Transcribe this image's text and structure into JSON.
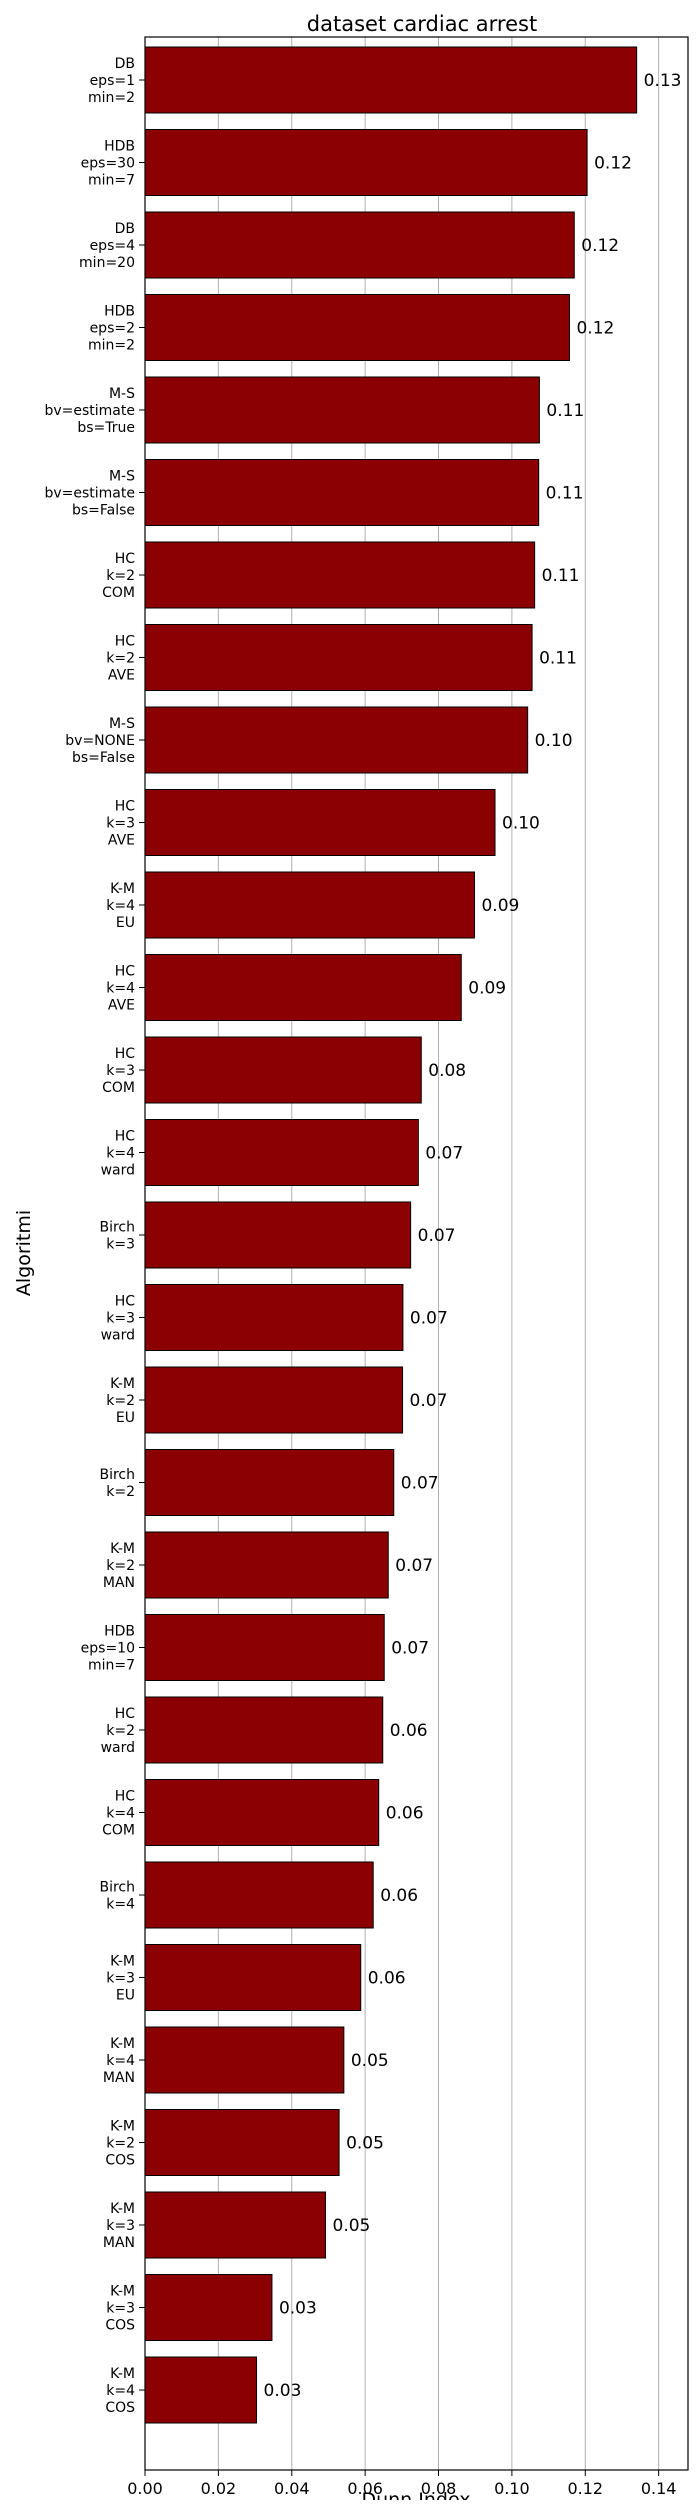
{
  "chart_data": {
    "type": "bar",
    "orientation": "horizontal",
    "title": "dataset cardiac arrest",
    "xlabel": "Dunn Index",
    "ylabel": "Algoritmi",
    "xlim": [
      0,
      0.148
    ],
    "xticks": [
      "0.00",
      "0.02",
      "0.04",
      "0.06",
      "0.08",
      "0.10",
      "0.12",
      "0.14"
    ],
    "xtick_values": [
      0,
      0.02,
      0.04,
      0.06,
      0.08,
      0.1,
      0.12,
      0.14
    ],
    "grid": "vertical",
    "bar_color": "#8B0000",
    "edge_color": "#000000",
    "grid_color": "#b0b0b0",
    "categories": [
      [
        "DB",
        "eps=1",
        "min=2"
      ],
      [
        "HDB",
        "eps=30",
        "min=7"
      ],
      [
        "DB",
        "eps=4",
        "min=20"
      ],
      [
        "HDB",
        "eps=2",
        "min=2"
      ],
      [
        "M-S",
        "bv=estimate",
        "bs=True"
      ],
      [
        "M-S",
        "bv=estimate",
        "bs=False"
      ],
      [
        "HC",
        "k=2",
        "COM"
      ],
      [
        "HC",
        "k=2",
        "AVE"
      ],
      [
        "M-S",
        "bv=NONE",
        "bs=False"
      ],
      [
        "HC",
        "k=3",
        "AVE"
      ],
      [
        "K-M",
        "k=4",
        "EU"
      ],
      [
        "HC",
        "k=4",
        "AVE"
      ],
      [
        "HC",
        "k=3",
        "COM"
      ],
      [
        "HC",
        "k=4",
        "ward"
      ],
      [
        "Birch",
        "k=3"
      ],
      [
        "HC",
        "k=3",
        "ward"
      ],
      [
        "K-M",
        "k=2",
        "EU"
      ],
      [
        "Birch",
        "k=2"
      ],
      [
        "K-M",
        "k=2",
        "MAN"
      ],
      [
        "HDB",
        "eps=10",
        "min=7"
      ],
      [
        "HC",
        "k=2",
        "ward"
      ],
      [
        "HC",
        "k=4",
        "COM"
      ],
      [
        "Birch",
        "k=4"
      ],
      [
        "K-M",
        "k=3",
        "EU"
      ],
      [
        "K-M",
        "k=4",
        "MAN"
      ],
      [
        "K-M",
        "k=2",
        "COS"
      ],
      [
        "K-M",
        "k=3",
        "MAN"
      ],
      [
        "K-M",
        "k=3",
        "COS"
      ],
      [
        "K-M",
        "k=4",
        "COS"
      ]
    ],
    "values": [
      0.134,
      0.1205,
      0.117,
      0.1157,
      0.1075,
      0.1073,
      0.1062,
      0.1055,
      0.1043,
      0.0954,
      0.0898,
      0.0862,
      0.0753,
      0.0745,
      0.0724,
      0.0703,
      0.0702,
      0.0678,
      0.0663,
      0.0652,
      0.0648,
      0.0637,
      0.0622,
      0.0588,
      0.0542,
      0.0529,
      0.0492,
      0.0346,
      0.0304
    ],
    "data_labels": [
      "0.13",
      "0.12",
      "0.12",
      "0.12",
      "0.11",
      "0.11",
      "0.11",
      "0.11",
      "0.10",
      "0.10",
      "0.09",
      "0.09",
      "0.08",
      "0.07",
      "0.07",
      "0.07",
      "0.07",
      "0.07",
      "0.07",
      "0.07",
      "0.06",
      "0.06",
      "0.06",
      "0.06",
      "0.05",
      "0.05",
      "0.05",
      "0.03",
      "0.03"
    ]
  }
}
